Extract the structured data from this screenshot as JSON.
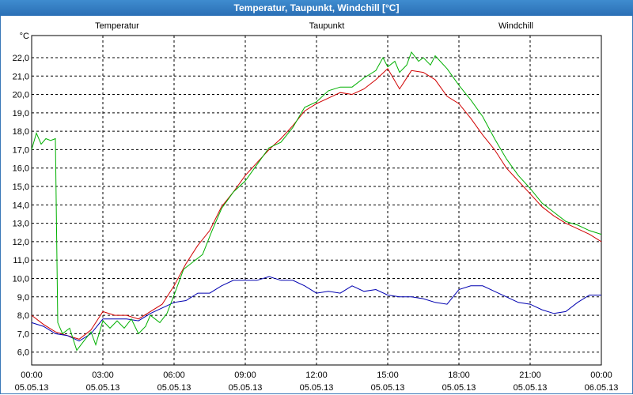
{
  "window": {
    "title": "Temperatur, Taupunkt, Windchill [°C]"
  },
  "chart_data": {
    "type": "line",
    "title": "Temperatur, Taupunkt, Windchill [°C]",
    "ylabel": "°C",
    "xlabel": "",
    "ylim": [
      5.3,
      23.2
    ],
    "xlim": [
      0,
      24
    ],
    "grid": true,
    "legend_placement": "top",
    "y_ticks": [
      "6,0",
      "7,0",
      "8,0",
      "9,0",
      "10,0",
      "11,0",
      "12,0",
      "13,0",
      "14,0",
      "15,0",
      "16,0",
      "17,0",
      "18,0",
      "19,0",
      "20,0",
      "21,0",
      "22,0"
    ],
    "x_ticks": [
      {
        "time": "00:00",
        "date": "05.05.13"
      },
      {
        "time": "03:00",
        "date": "05.05.13"
      },
      {
        "time": "06:00",
        "date": "05.05.13"
      },
      {
        "time": "09:00",
        "date": "05.05.13"
      },
      {
        "time": "12:00",
        "date": "05.05.13"
      },
      {
        "time": "15:00",
        "date": "05.05.13"
      },
      {
        "time": "18:00",
        "date": "05.05.13"
      },
      {
        "time": "21:00",
        "date": "05.05.13"
      },
      {
        "time": "00:00",
        "date": "06.05.13"
      }
    ],
    "series": [
      {
        "name": "Temperatur",
        "color": "#d00000",
        "points": [
          [
            0,
            8.0
          ],
          [
            0.5,
            7.5
          ],
          [
            1,
            7.1
          ],
          [
            1.5,
            6.9
          ],
          [
            2,
            6.7
          ],
          [
            2.5,
            7.2
          ],
          [
            3,
            8.2
          ],
          [
            3.5,
            8.0
          ],
          [
            4,
            8.0
          ],
          [
            4.5,
            7.8
          ],
          [
            5,
            8.2
          ],
          [
            5.5,
            8.6
          ],
          [
            6,
            9.6
          ],
          [
            6.5,
            10.8
          ],
          [
            7,
            11.8
          ],
          [
            7.5,
            12.6
          ],
          [
            8,
            13.9
          ],
          [
            8.5,
            14.7
          ],
          [
            9,
            15.6
          ],
          [
            9.5,
            16.3
          ],
          [
            10,
            17.0
          ],
          [
            10.5,
            17.6
          ],
          [
            11,
            18.3
          ],
          [
            11.5,
            19.1
          ],
          [
            12,
            19.5
          ],
          [
            12.5,
            19.8
          ],
          [
            13,
            20.1
          ],
          [
            13.5,
            20.0
          ],
          [
            14,
            20.3
          ],
          [
            14.5,
            20.8
          ],
          [
            15,
            21.4
          ],
          [
            15.5,
            20.3
          ],
          [
            16,
            21.3
          ],
          [
            16.5,
            21.2
          ],
          [
            17,
            20.8
          ],
          [
            17.5,
            19.9
          ],
          [
            18,
            19.5
          ],
          [
            18.5,
            18.7
          ],
          [
            19,
            17.8
          ],
          [
            19.5,
            17.0
          ],
          [
            20,
            16.0
          ],
          [
            20.5,
            15.3
          ],
          [
            21,
            14.6
          ],
          [
            21.5,
            13.9
          ],
          [
            22,
            13.4
          ],
          [
            22.5,
            13.0
          ],
          [
            23,
            12.7
          ],
          [
            23.5,
            12.4
          ],
          [
            24,
            12.0
          ]
        ]
      },
      {
        "name": "Taupunkt",
        "color": "#0000b0",
        "points": [
          [
            0,
            7.6
          ],
          [
            0.5,
            7.4
          ],
          [
            1,
            7.0
          ],
          [
            1.5,
            6.9
          ],
          [
            2,
            6.6
          ],
          [
            2.5,
            7.0
          ],
          [
            3,
            7.8
          ],
          [
            3.5,
            7.8
          ],
          [
            4,
            7.8
          ],
          [
            4.5,
            7.7
          ],
          [
            5,
            8.1
          ],
          [
            5.5,
            8.4
          ],
          [
            6,
            8.7
          ],
          [
            6.5,
            8.8
          ],
          [
            7,
            9.2
          ],
          [
            7.5,
            9.2
          ],
          [
            8,
            9.6
          ],
          [
            8.5,
            9.9
          ],
          [
            9,
            9.9
          ],
          [
            9.5,
            9.9
          ],
          [
            10,
            10.1
          ],
          [
            10.5,
            9.9
          ],
          [
            11,
            9.9
          ],
          [
            11.5,
            9.6
          ],
          [
            12,
            9.2
          ],
          [
            12.5,
            9.3
          ],
          [
            13,
            9.2
          ],
          [
            13.5,
            9.6
          ],
          [
            14,
            9.3
          ],
          [
            14.5,
            9.4
          ],
          [
            15,
            9.1
          ],
          [
            15.5,
            9.0
          ],
          [
            16,
            9.0
          ],
          [
            16.5,
            8.9
          ],
          [
            17,
            8.7
          ],
          [
            17.5,
            8.6
          ],
          [
            18,
            9.4
          ],
          [
            18.5,
            9.6
          ],
          [
            19,
            9.6
          ],
          [
            19.5,
            9.3
          ],
          [
            20,
            9.0
          ],
          [
            20.5,
            8.7
          ],
          [
            21,
            8.6
          ],
          [
            21.5,
            8.3
          ],
          [
            22,
            8.1
          ],
          [
            22.5,
            8.2
          ],
          [
            23,
            8.7
          ],
          [
            23.5,
            9.1
          ],
          [
            24,
            9.1
          ]
        ]
      },
      {
        "name": "Windchill",
        "color": "#00b000",
        "points": [
          [
            0,
            17.0
          ],
          [
            0.2,
            17.9
          ],
          [
            0.4,
            17.3
          ],
          [
            0.6,
            17.6
          ],
          [
            0.8,
            17.5
          ],
          [
            1,
            17.6
          ],
          [
            1.1,
            7.6
          ],
          [
            1.3,
            7.0
          ],
          [
            1.6,
            7.3
          ],
          [
            1.9,
            6.1
          ],
          [
            2.2,
            6.6
          ],
          [
            2.5,
            7.1
          ],
          [
            2.7,
            6.4
          ],
          [
            3,
            7.7
          ],
          [
            3.3,
            7.3
          ],
          [
            3.6,
            7.7
          ],
          [
            3.9,
            7.3
          ],
          [
            4.2,
            7.8
          ],
          [
            4.5,
            7.0
          ],
          [
            4.8,
            7.4
          ],
          [
            5,
            8.0
          ],
          [
            5.4,
            7.6
          ],
          [
            5.7,
            8.1
          ],
          [
            6,
            9.1
          ],
          [
            6.4,
            10.5
          ],
          [
            6.8,
            10.9
          ],
          [
            7.2,
            11.3
          ],
          [
            7.6,
            12.6
          ],
          [
            8,
            13.8
          ],
          [
            8.5,
            14.7
          ],
          [
            9,
            15.3
          ],
          [
            9.5,
            16.2
          ],
          [
            10,
            17.1
          ],
          [
            10.5,
            17.4
          ],
          [
            11,
            18.2
          ],
          [
            11.5,
            19.3
          ],
          [
            12,
            19.6
          ],
          [
            12.5,
            20.2
          ],
          [
            13,
            20.4
          ],
          [
            13.5,
            20.4
          ],
          [
            14,
            20.9
          ],
          [
            14.5,
            21.3
          ],
          [
            14.8,
            22.0
          ],
          [
            15,
            21.5
          ],
          [
            15.3,
            21.8
          ],
          [
            15.5,
            21.2
          ],
          [
            15.8,
            21.6
          ],
          [
            16,
            22.3
          ],
          [
            16.3,
            21.8
          ],
          [
            16.5,
            22.0
          ],
          [
            16.8,
            21.6
          ],
          [
            17,
            22.1
          ],
          [
            17.5,
            21.4
          ],
          [
            18,
            20.5
          ],
          [
            18.5,
            19.7
          ],
          [
            19,
            18.8
          ],
          [
            19.5,
            17.6
          ],
          [
            20,
            16.5
          ],
          [
            20.5,
            15.6
          ],
          [
            21,
            14.9
          ],
          [
            21.5,
            14.1
          ],
          [
            22,
            13.6
          ],
          [
            22.5,
            13.1
          ],
          [
            23,
            12.9
          ],
          [
            23.5,
            12.6
          ],
          [
            24,
            12.4
          ]
        ]
      }
    ]
  }
}
